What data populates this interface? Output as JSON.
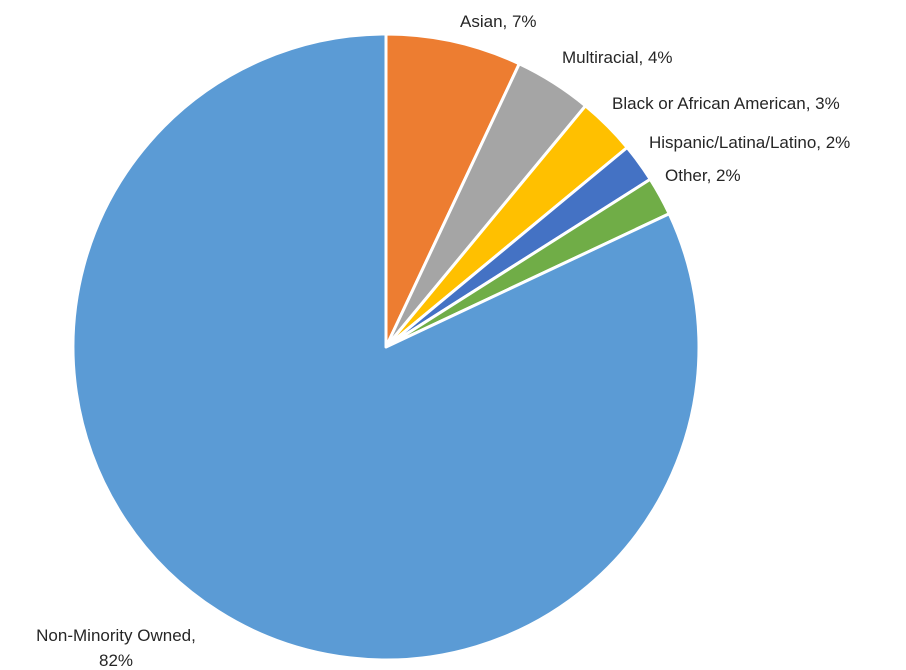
{
  "chart_data": {
    "type": "pie",
    "title": "",
    "start_angle_deg": 0,
    "direction": "clockwise",
    "slices": [
      {
        "label": "Asian",
        "value": 7,
        "value_label": "7%",
        "color": "#ED7D31"
      },
      {
        "label": "Multiracial",
        "value": 4,
        "value_label": "4%",
        "color": "#A5A5A5"
      },
      {
        "label": "Black or African American",
        "value": 3,
        "value_label": "3%",
        "color": "#FFC000"
      },
      {
        "label": "Hispanic/Latina/Latino",
        "value": 2,
        "value_label": "2%",
        "color": "#4472C4"
      },
      {
        "label": "Other",
        "value": 2,
        "value_label": "2%",
        "color": "#70AD47"
      },
      {
        "label": "Non-Minority Owned",
        "value": 82,
        "value_label": "82%",
        "color": "#5B9BD5"
      }
    ]
  }
}
